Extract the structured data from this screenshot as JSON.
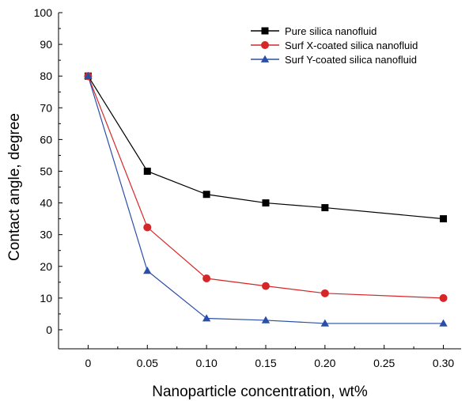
{
  "chart_data": {
    "type": "line",
    "title": "",
    "xlabel": "Nanoparticle concentration, wt%",
    "ylabel": "Contact angle, degree",
    "xlim": [
      -0.025,
      0.315
    ],
    "ylim": [
      -6,
      100
    ],
    "x_ticks": [
      0,
      0.05,
      0.1,
      0.15,
      0.2,
      0.25,
      0.3
    ],
    "x_tick_labels": [
      "0",
      "0.05",
      "0.10",
      "0.15",
      "0.20",
      "0.25",
      "0.30"
    ],
    "y_ticks": [
      0,
      10,
      20,
      30,
      40,
      50,
      60,
      70,
      80,
      90,
      100
    ],
    "y_tick_labels": [
      "0",
      "10",
      "20",
      "30",
      "40",
      "50",
      "60",
      "70",
      "80",
      "90",
      "100"
    ],
    "grid": false,
    "legend_position": "top-right",
    "series": [
      {
        "name": "Pure silica nanofluid",
        "color": "#000000",
        "marker": "square",
        "x": [
          0,
          0.05,
          0.1,
          0.15,
          0.2,
          0.3
        ],
        "y": [
          80,
          50,
          42.7,
          40,
          38.5,
          35
        ]
      },
      {
        "name": "Surf X-coated silica nanofluid",
        "color": "#d62728",
        "marker": "circle",
        "x": [
          0,
          0.05,
          0.1,
          0.15,
          0.2,
          0.3
        ],
        "y": [
          80,
          32.3,
          16.2,
          13.8,
          11.5,
          10
        ]
      },
      {
        "name": "Surf Y-coated silica nanofluid",
        "color": "#2b4ea8",
        "marker": "triangle",
        "x": [
          0,
          0.05,
          0.1,
          0.15,
          0.2,
          0.3
        ],
        "y": [
          80,
          18.6,
          3.6,
          3,
          2,
          2
        ]
      }
    ]
  }
}
